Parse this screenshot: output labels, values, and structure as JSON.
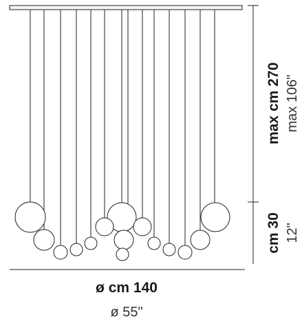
{
  "dimensions": {
    "width_metric": "ø cm 140",
    "width_imperial": "ø 55\"",
    "drop_metric": "max cm 270",
    "drop_imperial": "max 106\"",
    "globe_metric": "cm 30",
    "globe_imperial": "12\""
  },
  "colors": {
    "line": "#222222",
    "globe_fill": "#ffffff",
    "canopy_fill": "#f4f4f4"
  }
}
